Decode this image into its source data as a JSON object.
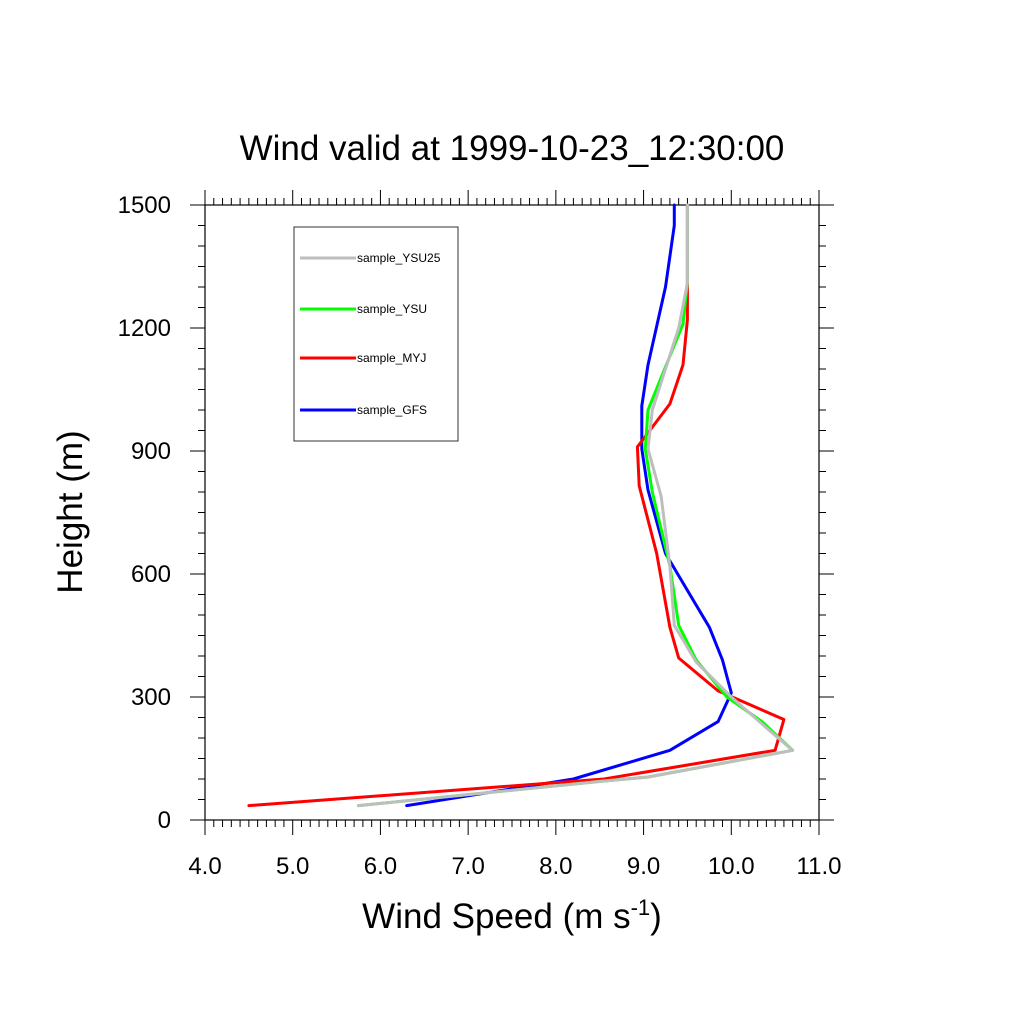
{
  "chart_data": {
    "type": "line",
    "title": "Wind valid at 1999-10-23_12:30:00",
    "xlabel": "Wind Speed (m s",
    "xlabel_sup": "-1",
    "xlabel_end": ")",
    "ylabel": "Height (m)",
    "xlim": [
      4.0,
      11.0
    ],
    "ylim": [
      0,
      1500
    ],
    "x_ticks": [
      "4.0",
      "5.0",
      "6.0",
      "7.0",
      "8.0",
      "9.0",
      "10.0",
      "11.0"
    ],
    "y_ticks": [
      "0",
      "300",
      "600",
      "900",
      "1200",
      "1500"
    ],
    "legend_position": "top-left",
    "grid": false,
    "series": [
      {
        "name": "sample_YSU25",
        "color": "#bebebe",
        "points": [
          [
            5.75,
            35
          ],
          [
            8.55,
            95
          ],
          [
            9.05,
            105
          ],
          [
            10.7,
            170
          ],
          [
            10.4,
            225
          ],
          [
            10.0,
            300
          ],
          [
            9.6,
            385
          ],
          [
            9.35,
            475
          ],
          [
            9.3,
            620
          ],
          [
            9.2,
            790
          ],
          [
            9.05,
            905
          ],
          [
            9.1,
            1000
          ],
          [
            9.4,
            1200
          ],
          [
            9.5,
            1310
          ],
          [
            9.5,
            1500
          ]
        ]
      },
      {
        "name": "sample_YSU",
        "color": "#00ff00",
        "points": [
          [
            5.75,
            35
          ],
          [
            8.55,
            95
          ],
          [
            9.05,
            105
          ],
          [
            10.7,
            170
          ],
          [
            10.35,
            240
          ],
          [
            9.95,
            300
          ],
          [
            9.6,
            390
          ],
          [
            9.4,
            475
          ],
          [
            9.3,
            620
          ],
          [
            9.1,
            800
          ],
          [
            9.02,
            905
          ],
          [
            9.05,
            1000
          ],
          [
            9.45,
            1210
          ],
          [
            9.5,
            1310
          ],
          [
            9.5,
            1500
          ]
        ]
      },
      {
        "name": "sample_MYJ",
        "color": "#ff0000",
        "points": [
          [
            4.5,
            35
          ],
          [
            8.55,
            100
          ],
          [
            10.5,
            170
          ],
          [
            10.6,
            245
          ],
          [
            9.85,
            315
          ],
          [
            9.4,
            395
          ],
          [
            9.3,
            470
          ],
          [
            9.15,
            650
          ],
          [
            8.95,
            815
          ],
          [
            8.93,
            910
          ],
          [
            9.3,
            1015
          ],
          [
            9.45,
            1110
          ],
          [
            9.5,
            1220
          ],
          [
            9.5,
            1500
          ]
        ]
      },
      {
        "name": "sample_GFS",
        "color": "#0000ff",
        "points": [
          [
            6.3,
            35
          ],
          [
            8.2,
            100
          ],
          [
            9.3,
            170
          ],
          [
            9.85,
            240
          ],
          [
            10.0,
            310
          ],
          [
            9.9,
            390
          ],
          [
            9.75,
            470
          ],
          [
            9.5,
            560
          ],
          [
            9.25,
            650
          ],
          [
            9.05,
            805
          ],
          [
            8.98,
            905
          ],
          [
            8.98,
            1010
          ],
          [
            9.05,
            1110
          ],
          [
            9.25,
            1300
          ],
          [
            9.35,
            1450
          ],
          [
            9.35,
            1500
          ]
        ]
      }
    ]
  }
}
